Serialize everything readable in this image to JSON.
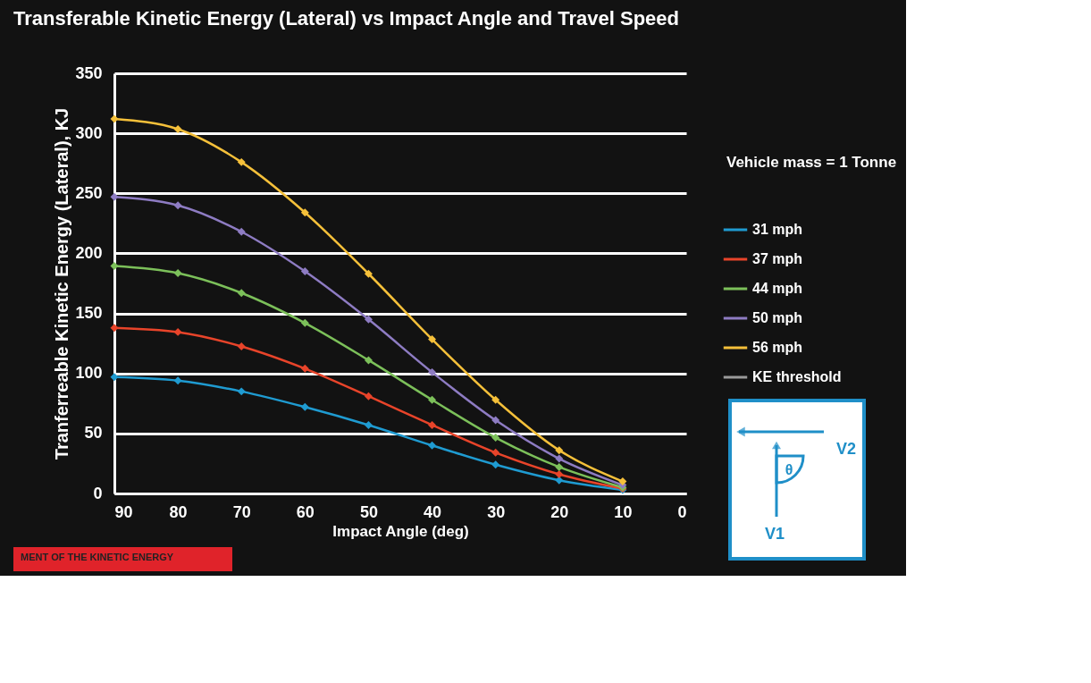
{
  "chart_data": {
    "type": "line",
    "title": "Transferable Kinetic Energy (Lateral) vs Impact Angle and Travel Speed",
    "xlabel": "Impact Angle (deg)",
    "ylabel": "Tranferreable Kinetic Energy (Lateral), KJ",
    "x": [
      90,
      80,
      70,
      60,
      50,
      40,
      30,
      20,
      10
    ],
    "series": [
      {
        "name": "31 mph",
        "color": "#1f9bd1",
        "values": [
          97,
          94,
          85,
          72,
          57,
          40,
          24,
          11,
          3
        ]
      },
      {
        "name": "37 mph",
        "color": "#e8442a",
        "values": [
          138,
          134.5,
          122.5,
          104,
          81,
          57,
          34,
          16,
          4
        ]
      },
      {
        "name": "44 mph",
        "color": "#7cc05a",
        "values": [
          189.5,
          183.5,
          167,
          142,
          111,
          78,
          46.5,
          22,
          5
        ]
      },
      {
        "name": "50 mph",
        "color": "#8e7cc3",
        "values": [
          247,
          240,
          218,
          185,
          145,
          101,
          61,
          29,
          7
        ]
      },
      {
        "name": "56 mph",
        "color": "#f5c03a",
        "values": [
          312,
          303.5,
          276,
          234,
          183,
          128.5,
          78,
          36,
          10
        ]
      },
      {
        "name": "KE threshold",
        "color": "#9a9a9a",
        "values": [
          null,
          null,
          null,
          null,
          null,
          null,
          null,
          null,
          null
        ]
      }
    ],
    "xlim": [
      90,
      0
    ],
    "xticks": [
      90,
      80,
      70,
      60,
      50,
      40,
      30,
      20,
      10,
      0
    ],
    "ylim": [
      0,
      350
    ],
    "yticks": [
      0,
      50,
      100,
      150,
      200,
      250,
      300,
      350
    ],
    "grid": "y",
    "legend": "right",
    "marker": "diamond",
    "line_style": "solid",
    "annotations": [
      "Vehicle mass = 1 Tonne",
      "MENT OF THE KINETIC ENERGY",
      "V1",
      "V2",
      "θ"
    ]
  }
}
